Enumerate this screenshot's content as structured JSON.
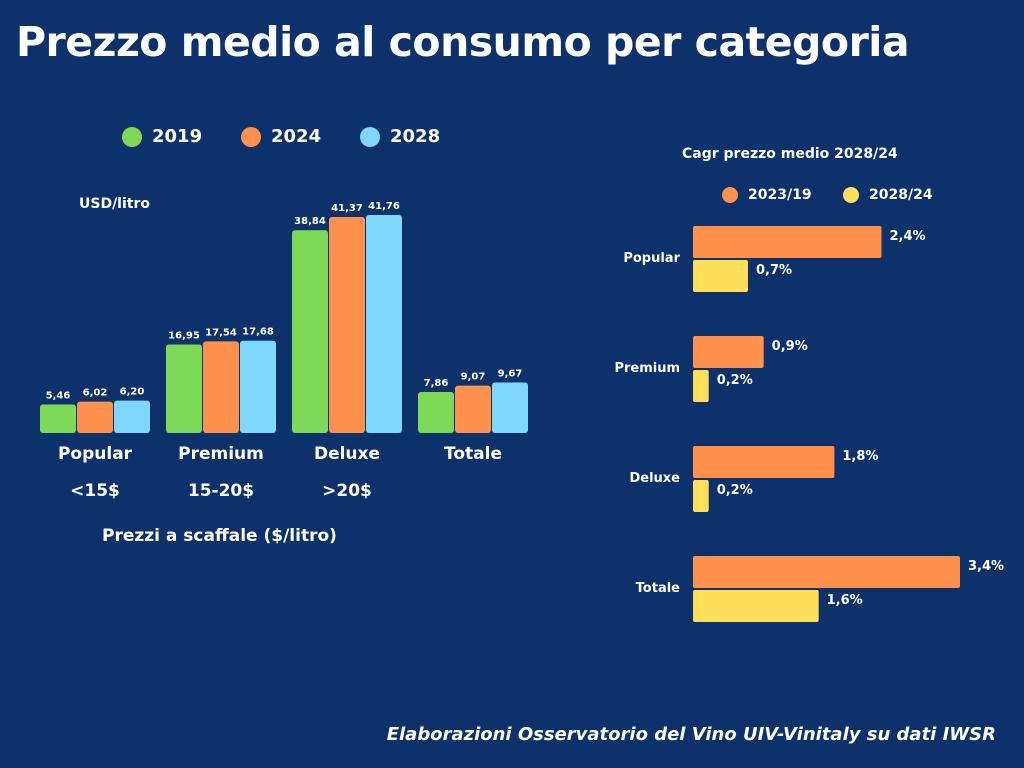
{
  "title": "Prezzo medio al consumo per categoria",
  "source_note": "Elaborazioni Osservatorio del Vino UIV-Vinitaly su dati IWSR",
  "chart_data": [
    {
      "type": "bar",
      "orientation": "vertical",
      "title": "",
      "ylabel": "USD/litro",
      "xlabel": "Prezzi a scaffale ($/litro)",
      "categories": [
        "Popular",
        "Premium",
        "Deluxe",
        "Totale"
      ],
      "category_sublabels": [
        "<15$",
        "15-20$",
        ">20$",
        ""
      ],
      "legend": "top",
      "grid": false,
      "ylim": [
        0,
        45
      ],
      "series": [
        {
          "name": "2019",
          "color": "#7ed957",
          "values": [
            5.46,
            16.95,
            38.84,
            7.86
          ],
          "labels": [
            "5,46",
            "16,95",
            "38,84",
            "7,86"
          ]
        },
        {
          "name": "2024",
          "color": "#ff914d",
          "values": [
            6.02,
            17.54,
            41.37,
            9.07
          ],
          "labels": [
            "6,02",
            "17,54",
            "41,37",
            "9,07"
          ]
        },
        {
          "name": "2028",
          "color": "#7ed8fb",
          "values": [
            6.2,
            17.68,
            41.76,
            9.67
          ],
          "labels": [
            "6,20",
            "17,68",
            "41,76",
            "9,67"
          ]
        }
      ]
    },
    {
      "type": "bar",
      "orientation": "horizontal",
      "title": "Cagr prezzo medio 2028/24",
      "xlabel": "",
      "ylabel": "",
      "categories": [
        "Popular",
        "Premium",
        "Deluxe",
        "Totale"
      ],
      "legend": "top",
      "grid": false,
      "xlim": [
        0,
        3.5
      ],
      "unit": "%",
      "series": [
        {
          "name": "2023/19",
          "color": "#ff914d",
          "values": [
            2.4,
            0.9,
            1.8,
            3.4
          ],
          "labels": [
            "2,4%",
            "0,9%",
            "1,8%",
            "3,4%"
          ]
        },
        {
          "name": "2028/24",
          "color": "#ffde59",
          "values": [
            0.7,
            0.2,
            0.2,
            1.6
          ],
          "labels": [
            "0,7%",
            "0,2%",
            "0,2%",
            "1,6%"
          ]
        }
      ]
    }
  ]
}
